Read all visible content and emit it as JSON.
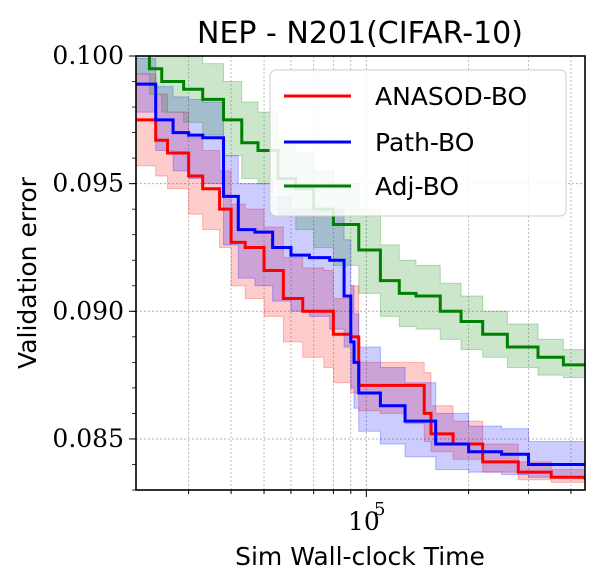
{
  "chart_data": {
    "type": "line",
    "title": "NEP - N201(CIFAR-10)",
    "xlabel": "Sim Wall-clock Time",
    "ylabel": "Validation error",
    "x_scale": "log",
    "xlim": [
      21000,
      440000
    ],
    "ylim": [
      0.083,
      0.1
    ],
    "yticks": [
      0.085,
      0.09,
      0.095,
      0.1
    ],
    "ytick_labels": [
      "0.085",
      "0.090",
      "0.095",
      "0.100"
    ],
    "xticks": [
      100000
    ],
    "xtick_labels_base": "10",
    "xtick_labels_exp": "5",
    "grid": true,
    "legend_position": "top-right",
    "series": [
      {
        "name": "ANASOD-BO",
        "color": "#ff0000",
        "x": [
          21000,
          24000,
          26000,
          30000,
          33000,
          37000,
          40000,
          44000,
          50000,
          57000,
          65000,
          75000,
          80000,
          90000,
          95000,
          110000,
          130000,
          148000,
          155000,
          180000,
          220000,
          280000,
          350000,
          440000
        ],
        "mean": [
          0.0975,
          0.0967,
          0.0962,
          0.0953,
          0.0948,
          0.094,
          0.0927,
          0.0925,
          0.0916,
          0.0905,
          0.09,
          0.09,
          0.0891,
          0.089,
          0.0871,
          0.0871,
          0.0871,
          0.086,
          0.0852,
          0.0848,
          0.0841,
          0.0837,
          0.0835,
          0.0834
        ],
        "lower": [
          0.0957,
          0.0953,
          0.0948,
          0.0938,
          0.0932,
          0.0925,
          0.091,
          0.0905,
          0.0898,
          0.0888,
          0.0882,
          0.0878,
          0.0872,
          0.0868,
          0.0861,
          0.086,
          0.0856,
          0.0849,
          0.0845,
          0.0842,
          0.0837,
          0.0834,
          0.0833,
          0.0832
        ],
        "upper": [
          0.0993,
          0.0985,
          0.0978,
          0.0968,
          0.0963,
          0.0955,
          0.0942,
          0.094,
          0.0933,
          0.0921,
          0.0917,
          0.0916,
          0.0905,
          0.091,
          0.088,
          0.088,
          0.088,
          0.0876,
          0.0863,
          0.0857,
          0.0848,
          0.0841,
          0.0838,
          0.0836
        ]
      },
      {
        "name": "Path-BO",
        "color": "#0000ff",
        "x": [
          21000,
          24000,
          27000,
          30000,
          33000,
          38000,
          42000,
          47000,
          53000,
          60000,
          68000,
          78000,
          86000,
          90000,
          92000,
          95000,
          110000,
          130000,
          160000,
          200000,
          250000,
          300000,
          440000
        ],
        "mean": [
          0.0989,
          0.0975,
          0.097,
          0.0969,
          0.0968,
          0.0945,
          0.0932,
          0.0931,
          0.0925,
          0.0922,
          0.0921,
          0.092,
          0.0906,
          0.0888,
          0.088,
          0.0868,
          0.0863,
          0.0857,
          0.0848,
          0.0845,
          0.0844,
          0.084,
          0.084
        ],
        "lower": [
          0.0978,
          0.0963,
          0.0955,
          0.0952,
          0.095,
          0.0926,
          0.0913,
          0.091,
          0.0904,
          0.09,
          0.0898,
          0.0893,
          0.0886,
          0.087,
          0.0862,
          0.0853,
          0.0848,
          0.0843,
          0.0838,
          0.0837,
          0.0836,
          0.0835,
          0.0835
        ],
        "upper": [
          0.0999,
          0.0988,
          0.0984,
          0.0983,
          0.0982,
          0.0961,
          0.095,
          0.095,
          0.0945,
          0.094,
          0.094,
          0.094,
          0.0928,
          0.091,
          0.0899,
          0.0886,
          0.0878,
          0.0872,
          0.086,
          0.0855,
          0.0854,
          0.0849,
          0.0848
        ]
      },
      {
        "name": "Adj-BO",
        "color": "#008000",
        "x": [
          21000,
          23000,
          25000,
          29000,
          33000,
          38000,
          43000,
          48000,
          55000,
          62000,
          70000,
          80000,
          95000,
          110000,
          125000,
          140000,
          165000,
          190000,
          220000,
          260000,
          320000,
          380000,
          440000
        ],
        "mean": [
          0.1003,
          0.0995,
          0.099,
          0.0987,
          0.0983,
          0.0975,
          0.0966,
          0.0963,
          0.0952,
          0.0948,
          0.094,
          0.0934,
          0.0924,
          0.0912,
          0.0907,
          0.0906,
          0.09,
          0.0896,
          0.0891,
          0.0886,
          0.0882,
          0.0879,
          0.0879
        ],
        "lower": [
          0.0993,
          0.0985,
          0.0978,
          0.0974,
          0.0969,
          0.0961,
          0.0952,
          0.095,
          0.0938,
          0.0932,
          0.0925,
          0.0918,
          0.0907,
          0.0898,
          0.0894,
          0.0893,
          0.0889,
          0.0885,
          0.0882,
          0.0878,
          0.0875,
          0.0874,
          0.0874
        ],
        "upper": [
          0.101,
          0.1005,
          0.1003,
          0.1,
          0.0997,
          0.099,
          0.0982,
          0.0978,
          0.0966,
          0.0962,
          0.0955,
          0.095,
          0.094,
          0.0926,
          0.092,
          0.0918,
          0.0911,
          0.0906,
          0.09,
          0.0895,
          0.0889,
          0.0885,
          0.0884
        ]
      }
    ]
  }
}
